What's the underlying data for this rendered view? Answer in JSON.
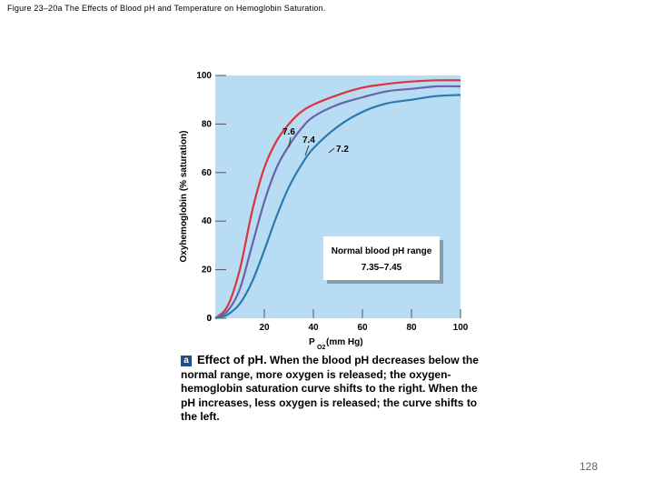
{
  "figure_title": "Figure 23–20a The Effects of Blood pH and Temperature on Hemoglobin Saturation.",
  "caption": {
    "badge": "a",
    "lead": "Effect of pH.",
    "text": " When the blood pH decreases below the normal range, more oxygen is released; the oxygen-hemoglobin saturation curve shifts to the right. When the pH increases, less oxygen is released; the curve shifts to the left."
  },
  "page_number": "128",
  "chart_data": {
    "type": "line",
    "xlabel_main": "P",
    "xlabel_sub": "O2",
    "xlabel_unit": " (mm Hg)",
    "ylabel": "Oxyhemoglobin (% saturation)",
    "xlim": [
      0,
      100
    ],
    "ylim": [
      0,
      100
    ],
    "x_ticks": [
      20,
      40,
      60,
      80,
      100
    ],
    "y_ticks": [
      0,
      20,
      40,
      60,
      80,
      100
    ],
    "grid": false,
    "background_color": "#b7dcf3",
    "series": [
      {
        "name": "7.6",
        "color": "#d9363b",
        "x": [
          0,
          5,
          10,
          15,
          20,
          25,
          30,
          35,
          40,
          50,
          60,
          70,
          80,
          90,
          100
        ],
        "y": [
          0,
          5,
          20,
          44,
          62,
          73,
          80,
          85,
          88,
          92,
          95,
          96.5,
          97.5,
          98,
          98
        ]
      },
      {
        "name": "7.4",
        "color": "#6a63a9",
        "x": [
          0,
          5,
          10,
          15,
          20,
          25,
          30,
          35,
          40,
          50,
          60,
          70,
          80,
          90,
          100
        ],
        "y": [
          0,
          3,
          12,
          30,
          48,
          62,
          71,
          78,
          83,
          88,
          91,
          93.5,
          94.5,
          95.5,
          95.5
        ]
      },
      {
        "name": "7.2",
        "color": "#2a7ab0",
        "x": [
          0,
          5,
          10,
          15,
          20,
          25,
          30,
          35,
          40,
          50,
          60,
          70,
          80,
          90,
          100
        ],
        "y": [
          0,
          1.5,
          6,
          15,
          28,
          42,
          54,
          63,
          70,
          79,
          85,
          88.5,
          90,
          91.5,
          92
        ]
      }
    ],
    "annotation": {
      "line1": "Normal blood pH range",
      "line2": "7.35–7.45"
    }
  }
}
